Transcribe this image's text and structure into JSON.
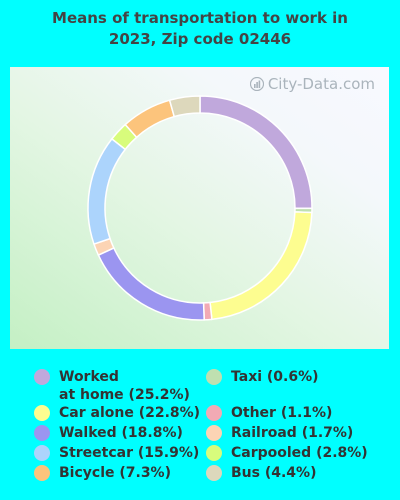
{
  "title": [
    "Means of transportation to work in",
    "2023, Zip code 02446"
  ],
  "watermark": "City-Data.com",
  "chart_data": {
    "type": "pie",
    "donut": true,
    "slices": [
      {
        "label": "Worked\nat home (25.2%)",
        "value": 25.2,
        "color": "#c0a8dc"
      },
      {
        "label": "Taxi (0.6%)",
        "value": 0.6,
        "color": "#bfe0b0"
      },
      {
        "label": "Car alone (22.8%)",
        "value": 22.8,
        "color": "#fdfd90"
      },
      {
        "label": "Other (1.1%)",
        "value": 1.1,
        "color": "#f2aab4"
      },
      {
        "label": "Walked (18.8%)",
        "value": 18.8,
        "color": "#9b95f0"
      },
      {
        "label": "Railroad (1.7%)",
        "value": 1.7,
        "color": "#fcd4b4"
      },
      {
        "label": "Streetcar (15.9%)",
        "value": 15.9,
        "color": "#acd4fc"
      },
      {
        "label": "Carpooled (2.8%)",
        "value": 2.8,
        "color": "#d8fc7c"
      },
      {
        "label": "Bicycle (7.3%)",
        "value": 7.3,
        "color": "#fcc47c"
      },
      {
        "label": "Bus (4.4%)",
        "value": 4.4,
        "color": "#ddd8bc"
      }
    ],
    "legend_placement": "bottom"
  }
}
